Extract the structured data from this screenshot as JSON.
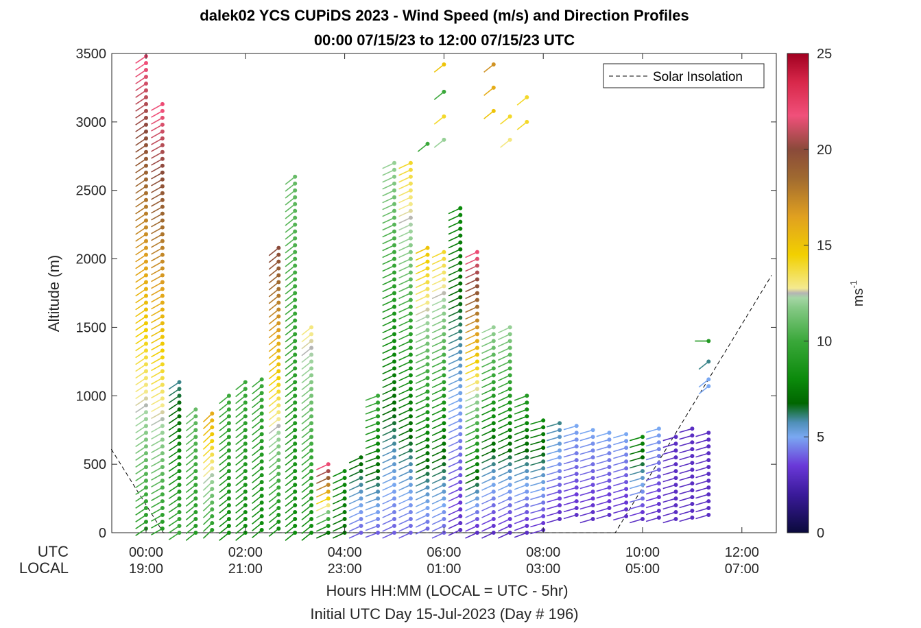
{
  "chart_data": {
    "type": "wind-barb-profile",
    "title": "dalek02 YCS CUPiDS 2023 - Wind Speed (m/s) and Direction Profiles",
    "subtitle": "00:00 07/15/23 to 12:00 07/15/23  UTC",
    "ylabel": "Altitude (m)",
    "xlabel": "Hours HH:MM  (LOCAL = UTC - 5hr)",
    "xlabel2": "Initial UTC Day 15-Jul-2023 (Day # 196)",
    "row_labels": {
      "utc": "UTC",
      "local": "LOCAL"
    },
    "ylim": [
      0,
      3500
    ],
    "xlim_hours": [
      -0.7,
      12.6
    ],
    "yticks": [
      0,
      500,
      1000,
      1500,
      2000,
      2500,
      3000,
      3500
    ],
    "xticks": [
      {
        "hour": 0,
        "utc": "00:00",
        "local": "19:00"
      },
      {
        "hour": 2,
        "utc": "02:00",
        "local": "21:00"
      },
      {
        "hour": 4,
        "utc": "04:00",
        "local": "23:00"
      },
      {
        "hour": 6,
        "utc": "06:00",
        "local": "01:00"
      },
      {
        "hour": 8,
        "utc": "08:00",
        "local": "03:00"
      },
      {
        "hour": 10,
        "utc": "10:00",
        "local": "05:00"
      },
      {
        "hour": 12,
        "utc": "12:00",
        "local": "07:00"
      }
    ],
    "legend": {
      "entry": "Solar Insolation",
      "placement": "top-right"
    },
    "colorbar": {
      "label": "ms",
      "label_exp": "-1",
      "min": 0,
      "max": 25,
      "ticks": [
        0,
        5,
        10,
        15,
        20,
        25
      ]
    },
    "solar_insolation": [
      {
        "hour": -0.7,
        "alt": 610
      },
      {
        "hour": 0.35,
        "alt": 0
      },
      {
        "hour": 9.45,
        "alt": 0
      },
      {
        "hour": 12.6,
        "alt": 1880
      }
    ],
    "profiles": [
      {
        "hour": 0.0,
        "top": 3480,
        "bottom": 0,
        "s_low": 9,
        "s_high": 22,
        "dir": 230
      },
      {
        "hour": 0.33,
        "top": 3130,
        "bottom": 0,
        "s_low": 9,
        "s_high": 22,
        "dir": 235
      },
      {
        "hour": 0.67,
        "top": 1100,
        "bottom": 0,
        "s_low": 10,
        "s_high": 6,
        "dir": 230
      },
      {
        "hour": 1.0,
        "top": 900,
        "bottom": 0,
        "s_low": 9,
        "s_high": 11,
        "dir": 225
      },
      {
        "hour": 1.33,
        "top": 870,
        "bottom": 0,
        "s_low": 9,
        "s_high": 16,
        "dir": 220
      },
      {
        "hour": 1.67,
        "top": 1000,
        "bottom": 0,
        "s_low": 8,
        "s_high": 10,
        "dir": 225
      },
      {
        "hour": 2.0,
        "top": 1100,
        "bottom": 0,
        "s_low": 8,
        "s_high": 10,
        "dir": 225
      },
      {
        "hour": 2.33,
        "top": 1120,
        "bottom": 0,
        "s_low": 8,
        "s_high": 10,
        "dir": 225
      },
      {
        "hour": 2.67,
        "top": 2080,
        "bottom": 0,
        "s_low": 8,
        "s_high": 20,
        "dir": 225
      },
      {
        "hour": 3.0,
        "top": 2600,
        "bottom": 0,
        "s_low": 8,
        "s_high": 11,
        "dir": 225
      },
      {
        "hour": 3.33,
        "top": 1500,
        "bottom": 0,
        "s_low": 8,
        "s_high": 13,
        "dir": 225
      },
      {
        "hour": 3.67,
        "top": 500,
        "bottom": 0,
        "s_low": 7,
        "s_high": 22,
        "dir": 240
      },
      {
        "hour": 4.0,
        "top": 450,
        "bottom": 0,
        "s_low": 7,
        "s_high": 8,
        "dir": 240
      },
      {
        "hour": 4.33,
        "top": 550,
        "bottom": 0,
        "s_low": 4,
        "s_high": 7,
        "dir": 240
      },
      {
        "hour": 4.67,
        "top": 1000,
        "bottom": 0,
        "s_low": 4,
        "s_high": 10,
        "dir": 245
      },
      {
        "hour": 5.0,
        "top": 2700,
        "bottom": 0,
        "s_low": 4,
        "s_high": 12,
        "dir": 240
      },
      {
        "hour": 5.33,
        "top": 2700,
        "bottom": 0,
        "s_low": 4,
        "s_high": 14,
        "dir": 240
      },
      {
        "hour": 5.67,
        "top": 2080,
        "bottom": 0,
        "s_low": 4,
        "s_high": 15,
        "dir": 240
      },
      {
        "hour": 6.0,
        "top": 2050,
        "bottom": 0,
        "s_low": 4,
        "s_high": 14,
        "dir": 240
      },
      {
        "hour": 6.33,
        "top": 2370,
        "bottom": 0,
        "s_low": 3,
        "s_high": 8,
        "dir": 240
      },
      {
        "hour": 6.67,
        "top": 2050,
        "bottom": 0,
        "s_low": 3,
        "s_high": 22,
        "dir": 240
      },
      {
        "hour": 7.0,
        "top": 1500,
        "bottom": 0,
        "s_low": 3,
        "s_high": 12,
        "dir": 240
      },
      {
        "hour": 7.33,
        "top": 1500,
        "bottom": 0,
        "s_low": 3,
        "s_high": 12,
        "dir": 240
      },
      {
        "hour": 7.67,
        "top": 1000,
        "bottom": 0,
        "s_low": 3,
        "s_high": 9,
        "dir": 245
      },
      {
        "hour": 8.0,
        "top": 820,
        "bottom": 0,
        "s_low": 3,
        "s_high": 8,
        "dir": 250
      },
      {
        "hour": 8.33,
        "top": 800,
        "bottom": 100,
        "s_low": 3,
        "s_high": 6,
        "dir": 250
      },
      {
        "hour": 8.67,
        "top": 780,
        "bottom": 100,
        "s_low": 3,
        "s_high": 5,
        "dir": 250
      },
      {
        "hour": 9.0,
        "top": 750,
        "bottom": 100,
        "s_low": 3,
        "s_high": 5,
        "dir": 250
      },
      {
        "hour": 9.33,
        "top": 730,
        "bottom": 100,
        "s_low": 3,
        "s_high": 5,
        "dir": 250
      },
      {
        "hour": 9.67,
        "top": 720,
        "bottom": 100,
        "s_low": 3,
        "s_high": 5,
        "dir": 250
      },
      {
        "hour": 10.0,
        "top": 700,
        "bottom": 100,
        "s_low": 3,
        "s_high": 8,
        "dir": 250
      },
      {
        "hour": 10.33,
        "top": 760,
        "bottom": 100,
        "s_low": 3,
        "s_high": 5,
        "dir": 250
      },
      {
        "hour": 10.67,
        "top": 700,
        "bottom": 100,
        "s_low": 3,
        "s_high": 3,
        "dir": 250
      },
      {
        "hour": 11.0,
        "top": 760,
        "bottom": 100,
        "s_low": 3,
        "s_high": 3,
        "dir": 250
      },
      {
        "hour": 11.33,
        "top": 730,
        "bottom": 100,
        "s_low": 3,
        "s_high": 3,
        "dir": 250
      }
    ],
    "extra_barbs": [
      {
        "hour": 11.33,
        "alt": 1400,
        "speed": 9,
        "dir": 270
      },
      {
        "hour": 11.33,
        "alt": 1250,
        "speed": 6,
        "dir": 225
      },
      {
        "hour": 11.33,
        "alt": 1120,
        "speed": 5,
        "dir": 225
      },
      {
        "hour": 11.33,
        "alt": 1070,
        "speed": 5,
        "dir": 225
      },
      {
        "hour": 6.0,
        "alt": 3420,
        "speed": 15,
        "dir": 225
      },
      {
        "hour": 6.0,
        "alt": 3220,
        "speed": 10,
        "dir": 225
      },
      {
        "hour": 6.0,
        "alt": 3040,
        "speed": 14,
        "dir": 225
      },
      {
        "hour": 6.0,
        "alt": 2870,
        "speed": 12,
        "dir": 225
      },
      {
        "hour": 7.0,
        "alt": 3420,
        "speed": 17,
        "dir": 225
      },
      {
        "hour": 7.0,
        "alt": 3250,
        "speed": 16,
        "dir": 225
      },
      {
        "hour": 7.0,
        "alt": 3080,
        "speed": 15,
        "dir": 225
      },
      {
        "hour": 7.33,
        "alt": 3040,
        "speed": 14,
        "dir": 225
      },
      {
        "hour": 7.33,
        "alt": 2870,
        "speed": 13,
        "dir": 225
      },
      {
        "hour": 7.67,
        "alt": 3180,
        "speed": 14,
        "dir": 225
      },
      {
        "hour": 7.67,
        "alt": 3000,
        "speed": 14,
        "dir": 225
      },
      {
        "hour": 5.67,
        "alt": 2840,
        "speed": 10,
        "dir": 225
      }
    ]
  }
}
